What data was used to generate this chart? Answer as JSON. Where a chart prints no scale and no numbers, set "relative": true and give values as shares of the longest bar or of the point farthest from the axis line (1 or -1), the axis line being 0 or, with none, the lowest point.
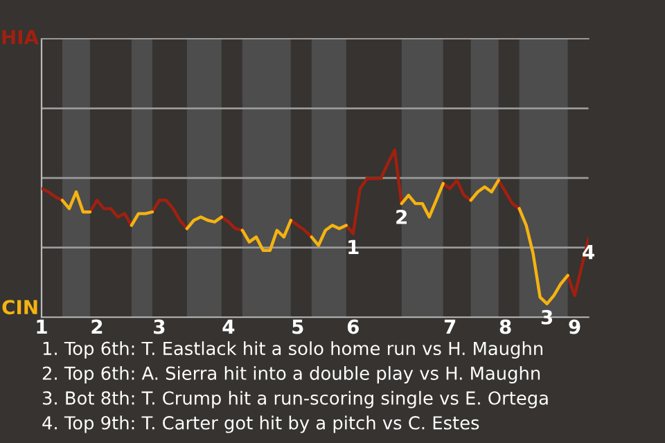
{
  "chart_data": {
    "type": "line",
    "relative": true,
    "categories": [
      "1",
      null,
      null,
      null,
      null,
      null,
      null,
      null,
      "2",
      null,
      null,
      null,
      null,
      null,
      null,
      null,
      null,
      "3",
      null,
      null,
      null,
      null,
      null,
      null,
      null,
      null,
      null,
      "4",
      null,
      null,
      null,
      null,
      null,
      null,
      null,
      null,
      null,
      "5",
      null,
      null,
      null,
      null,
      null,
      null,
      null,
      "6",
      null,
      null,
      null,
      null,
      null,
      null,
      null,
      null,
      null,
      null,
      null,
      null,
      null,
      "7",
      null,
      null,
      null,
      null,
      null,
      null,
      null,
      "8",
      null,
      null,
      null,
      null,
      null,
      null,
      null,
      null,
      null,
      "9",
      null,
      null
    ],
    "marker": "none",
    "ref_lines": [
      {
        "axis": "y",
        "value": 0.4167,
        "label": null,
        "color": "#9a9a9a"
      },
      {
        "axis": "y",
        "value": 0.8333,
        "label": null,
        "color": "#9a9a9a"
      },
      {
        "axis": "y",
        "value": 1.25,
        "label": null,
        "color": "#9a9a9a"
      }
    ],
    "series": [
      {
        "color": "#a02010",
        "values": [
          0.77,
          0.75,
          0.72,
          0.7,
          null,
          null,
          null,
          0.63,
          0.7,
          0.65,
          0.65,
          0.6,
          0.62,
          0.55,
          null,
          null,
          0.63,
          0.7,
          0.7,
          0.65,
          0.58,
          0.53,
          null,
          null,
          null,
          null,
          0.6,
          0.57,
          0.53,
          0.52,
          null,
          null,
          null,
          null,
          null,
          null,
          0.58,
          0.55,
          0.52,
          0.48,
          null,
          null,
          null,
          null,
          0.55,
          0.5,
          0.77,
          0.83,
          0.83,
          0.83,
          0.92,
          1,
          0.68,
          null,
          null,
          null,
          null,
          null,
          0.8,
          0.77,
          0.82,
          0.73,
          0.7,
          null,
          null,
          null,
          0.82,
          0.75,
          0.68,
          0.65,
          null,
          null,
          null,
          null,
          null,
          null,
          0.25,
          0.13,
          0.3,
          0.47
        ]
      },
      {
        "color": "#f5b311",
        "values": [
          null,
          null,
          null,
          0.7,
          0.65,
          0.75,
          0.63,
          0.63,
          null,
          null,
          null,
          null,
          null,
          0.55,
          0.62,
          0.62,
          0.63,
          null,
          null,
          null,
          null,
          0.53,
          0.58,
          0.6,
          0.58,
          0.57,
          0.6,
          null,
          null,
          0.52,
          0.45,
          0.48,
          0.4,
          0.4,
          0.52,
          0.48,
          0.58,
          null,
          null,
          0.48,
          0.43,
          0.52,
          0.55,
          0.53,
          0.55,
          null,
          null,
          null,
          null,
          null,
          null,
          null,
          0.68,
          0.73,
          0.68,
          0.68,
          0.6,
          0.7,
          0.8,
          null,
          null,
          null,
          0.7,
          0.75,
          0.78,
          0.75,
          0.82,
          null,
          null,
          0.65,
          0.55,
          0.38,
          0.12,
          0.08,
          0.13,
          0.2,
          0.25,
          null,
          null,
          null
        ]
      }
    ],
    "annotations": [
      "HIA",
      "CIN",
      {
        "text": "1",
        "y": 0.5
      },
      {
        "text": "2",
        "y": 0.68
      },
      {
        "text": "3",
        "y": 0.08
      },
      {
        "text": "4",
        "y": 0.47
      },
      "1. Top 6th: T. Eastlack hit a solo home run vs H. Maughn",
      "2. Top 6th: A. Sierra hit into a double play vs H. Maughn",
      "3. Bot 8th: T. Crump hit a run-scoring single vs E. Ortega",
      "4. Top 9th: T. Carter got hit by a pitch vs C. Estes"
    ]
  }
}
